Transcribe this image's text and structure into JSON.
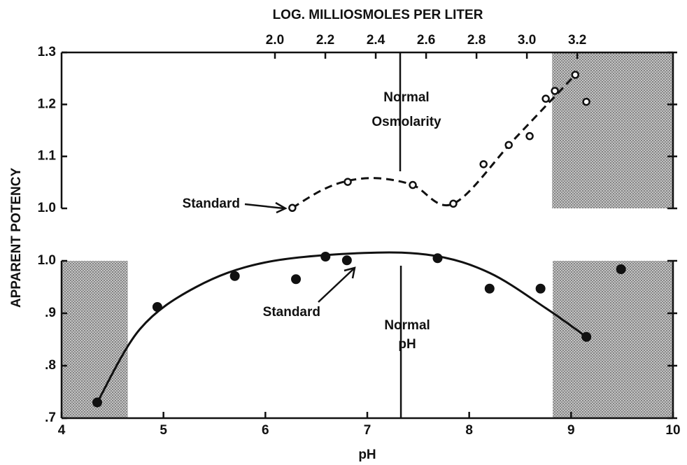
{
  "chart_data": [
    {
      "type": "scatter",
      "x_label": "LOG. MILLIOSMOLES PER LITER",
      "y_label": "APPARENT POTENCY",
      "xlim": [
        1.153,
        3.58
      ],
      "ylim": [
        1.0,
        1.3
      ],
      "xaxis_position": "top",
      "xticks": [
        {
          "value": 2.0,
          "label": "2.0"
        },
        2.2,
        2.4,
        2.6,
        2.8,
        {
          "value": 3.0,
          "label": "3.0"
        },
        3.2
      ],
      "yticks": [
        {
          "value": 1.0,
          "label": "1.0"
        },
        1.1,
        1.2,
        1.3
      ],
      "shaded_x": [
        [
          3.1,
          3.58
        ]
      ],
      "normal_x": 2.497,
      "annotations": [
        {
          "lines": [
            "Normal",
            "Osmolarity"
          ]
        },
        {
          "lines": [
            "Standard"
          ]
        }
      ],
      "series": [
        {
          "marker": "open",
          "color": "#111",
          "x": [
            2.069,
            2.289,
            2.547,
            2.708,
            2.828,
            2.928,
            3.011,
            3.075,
            3.111,
            3.192,
            3.236
          ],
          "values": [
            1.001,
            1.051,
            1.045,
            1.009,
            1.085,
            1.122,
            1.139,
            1.211,
            1.226,
            1.257,
            1.205
          ]
        },
        {
          "line": "dashed",
          "color": "#111",
          "x": [
            2.069,
            2.186,
            2.289,
            2.408,
            2.547,
            2.708,
            2.95,
            3.192
          ],
          "values": [
            1.001,
            1.035,
            1.053,
            1.058,
            1.045,
            1.009,
            1.133,
            1.257
          ]
        }
      ]
    },
    {
      "type": "scatter",
      "x_label": "pH",
      "xlim": [
        4,
        10
      ],
      "ylim": [
        0.7,
        1.0
      ],
      "xaxis_position": "bottom",
      "xticks": [
        4,
        5,
        6,
        7,
        8,
        9,
        10
      ],
      "yticks": [
        {
          "value": 0.7,
          "label": ".7"
        },
        {
          "value": 0.8,
          "label": ".8"
        },
        {
          "value": 0.9,
          "label": ".9"
        },
        {
          "value": 1.0,
          "label": "1.0"
        }
      ],
      "shaded_x": [
        [
          4,
          4.65
        ],
        [
          8.82,
          10
        ]
      ],
      "normal_x": 7.33,
      "annotations": [
        {
          "lines": [
            "Normal",
            "pH"
          ]
        },
        {
          "lines": [
            "Standard"
          ]
        }
      ],
      "series": [
        {
          "marker": "filled",
          "color": "#111",
          "x": [
            4.35,
            4.94,
            5.7,
            6.3,
            6.59,
            6.8,
            7.69,
            8.2,
            8.7,
            9.15,
            9.49
          ],
          "values": [
            0.73,
            0.912,
            0.971,
            0.965,
            1.008,
            1.001,
            1.005,
            0.947,
            0.947,
            0.855,
            0.984
          ]
        },
        {
          "line": "solid",
          "color": "#111",
          "x": [
            4.35,
            4.77,
            5.32,
            6.0,
            6.97,
            7.65,
            8.2,
            8.75,
            9.15
          ],
          "values": [
            0.73,
            0.87,
            0.95,
            0.997,
            1.015,
            1.01,
            0.977,
            0.91,
            0.855
          ]
        }
      ]
    }
  ]
}
